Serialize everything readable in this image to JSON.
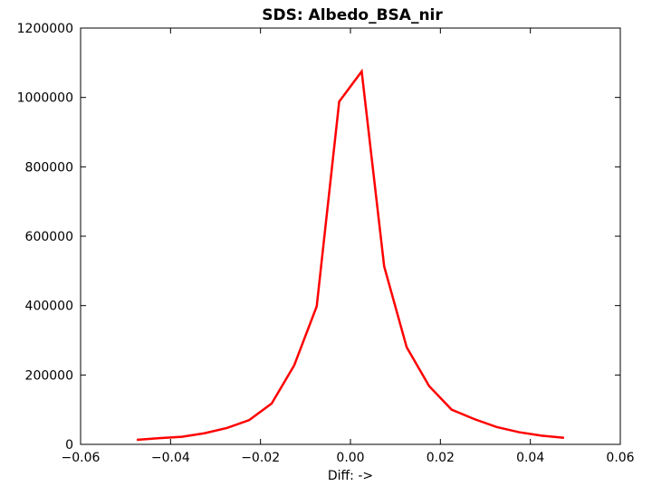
{
  "chart_data": {
    "type": "line",
    "title": "SDS: Albedo_BSA_nir",
    "xlabel": "Diff: ->",
    "ylabel": "",
    "xlim": [
      -0.06,
      0.06
    ],
    "ylim": [
      0,
      1200000
    ],
    "grid": false,
    "x_ticks": [
      -0.06,
      -0.04,
      -0.02,
      0.0,
      0.02,
      0.04,
      0.06
    ],
    "x_tick_labels": [
      "−0.06",
      "−0.04",
      "−0.02",
      "0.00",
      "0.02",
      "0.04",
      "0.06"
    ],
    "y_ticks": [
      0,
      200000,
      400000,
      600000,
      800000,
      1000000,
      1200000
    ],
    "y_tick_labels": [
      "0",
      "200000",
      "400000",
      "600000",
      "800000",
      "1000000",
      "1200000"
    ],
    "series": [
      {
        "color": "#ff0000",
        "x": [
          -0.0475,
          -0.0425,
          -0.0375,
          -0.0325,
          -0.0275,
          -0.0225,
          -0.0175,
          -0.0125,
          -0.0075,
          -0.0025,
          0.0025,
          0.0075,
          0.0125,
          0.0175,
          0.0225,
          0.0275,
          0.0325,
          0.0375,
          0.0425,
          0.0475
        ],
        "y": [
          13000,
          18000,
          22000,
          32000,
          47000,
          70000,
          118000,
          228000,
          398000,
          988000,
          1075000,
          513000,
          280000,
          168000,
          100000,
          73000,
          50000,
          35000,
          25000,
          19000
        ]
      }
    ]
  }
}
